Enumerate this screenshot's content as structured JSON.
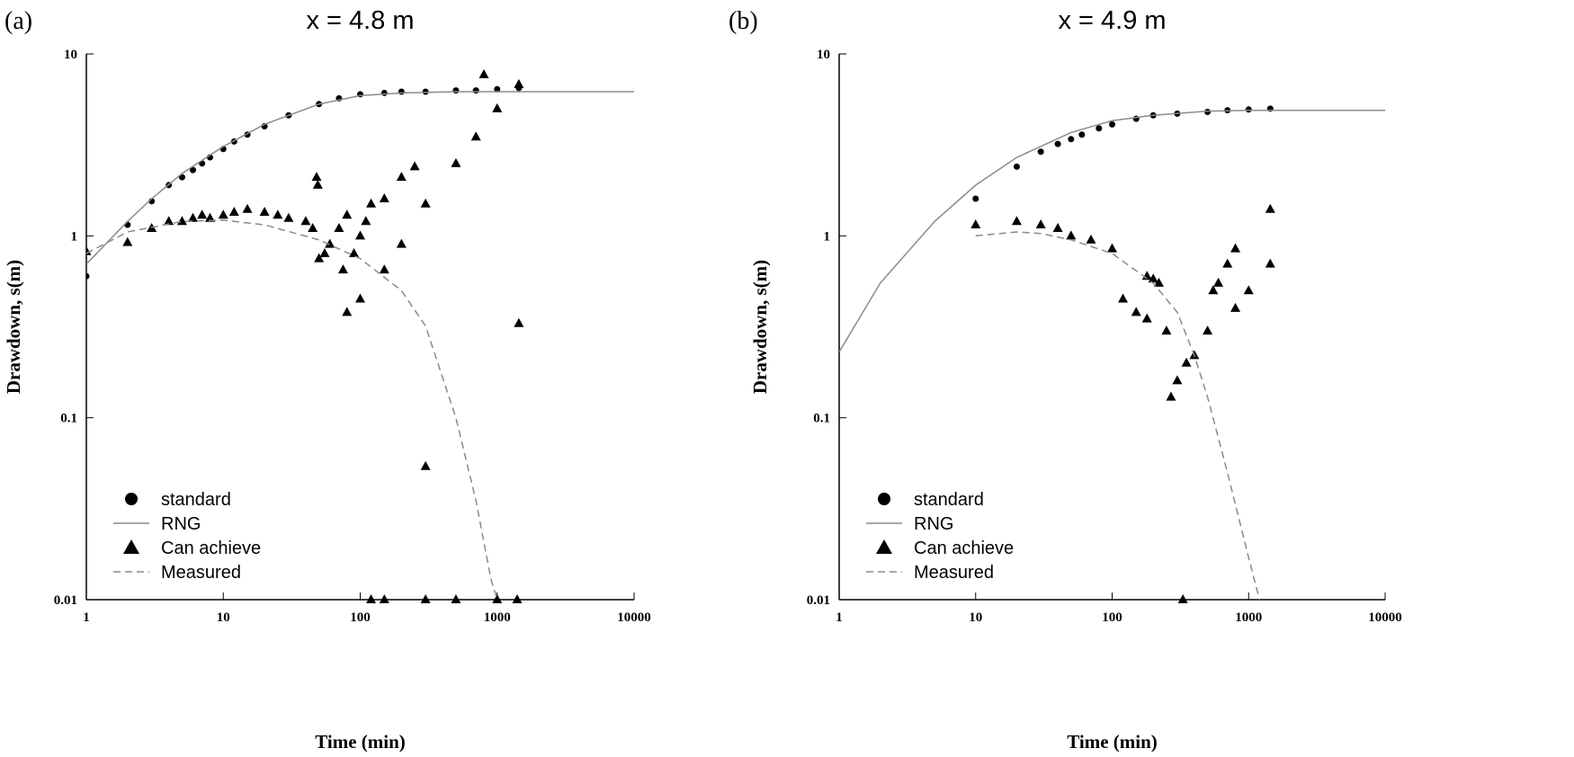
{
  "chart_data": [
    {
      "type": "scatter",
      "label": "(a)",
      "title": "x = 4.8 m",
      "xlabel": "Time (min)",
      "ylabel": "Drawdown, s(m)",
      "xscale": "log",
      "yscale": "log",
      "xlim": [
        1,
        10000
      ],
      "ylim": [
        0.01,
        10
      ],
      "xticks": [
        1,
        10,
        100,
        1000,
        10000
      ],
      "yticks": [
        0.01,
        0.1,
        1,
        10
      ],
      "legend": "lower left",
      "series": [
        {
          "name": "standard",
          "kind": "scatter",
          "marker": "circle",
          "color": "#000000",
          "x": [
            1,
            2,
            3,
            4,
            5,
            6,
            7,
            8,
            10,
            12,
            15,
            20,
            30,
            50,
            70,
            100,
            150,
            200,
            300,
            500,
            700,
            1000,
            1440
          ],
          "values": [
            0.6,
            1.15,
            1.55,
            1.9,
            2.1,
            2.3,
            2.5,
            2.7,
            3.0,
            3.3,
            3.6,
            4.0,
            4.6,
            5.3,
            5.7,
            6.0,
            6.1,
            6.2,
            6.2,
            6.3,
            6.3,
            6.4,
            6.5
          ]
        },
        {
          "name": "RNG",
          "kind": "line",
          "dash": "solid",
          "color": "#8a8a8a",
          "x": [
            1,
            2,
            3,
            5,
            10,
            20,
            50,
            100,
            200,
            500,
            1000,
            10000
          ],
          "values": [
            0.7,
            1.2,
            1.6,
            2.2,
            3.1,
            4.1,
            5.3,
            5.9,
            6.1,
            6.2,
            6.2,
            6.2
          ]
        },
        {
          "name": "Can achieve",
          "kind": "scatter",
          "marker": "triangle",
          "color": "#000000",
          "x": [
            1,
            2,
            3,
            4,
            5,
            6,
            7,
            8,
            10,
            12,
            15,
            20,
            25,
            30,
            40,
            45,
            48,
            49,
            50,
            55,
            60,
            70,
            75,
            80,
            90,
            100,
            110,
            120,
            150,
            200,
            250,
            80,
            100,
            150,
            200,
            300,
            500,
            700,
            1000,
            1440,
            800,
            1440,
            300,
            120,
            150,
            300,
            500,
            1000,
            1400
          ],
          "values": [
            0.82,
            0.92,
            1.1,
            1.2,
            1.2,
            1.25,
            1.3,
            1.25,
            1.3,
            1.35,
            1.4,
            1.35,
            1.3,
            1.25,
            1.2,
            1.1,
            2.1,
            1.9,
            0.75,
            0.8,
            0.9,
            1.1,
            0.65,
            1.3,
            0.8,
            1.0,
            1.2,
            1.5,
            1.6,
            2.1,
            2.4,
            0.38,
            0.45,
            0.65,
            0.9,
            1.5,
            2.5,
            3.5,
            5.0,
            6.8,
            7.7,
            0.33,
            0.054,
            0.01,
            0.01,
            0.01,
            0.01,
            0.01,
            0.01
          ]
        },
        {
          "name": "Measured",
          "kind": "line",
          "dash": "dashed",
          "color": "#8a8a8a",
          "x": [
            1,
            2,
            5,
            10,
            20,
            50,
            100,
            200,
            300,
            500,
            700,
            900,
            1000
          ],
          "values": [
            0.8,
            1.05,
            1.2,
            1.22,
            1.15,
            0.95,
            0.75,
            0.5,
            0.32,
            0.1,
            0.035,
            0.013,
            0.01
          ]
        }
      ]
    },
    {
      "type": "scatter",
      "label": "(b)",
      "title": "x = 4.9 m",
      "xlabel": "Time (min)",
      "ylabel": "Drawdown, s(m)",
      "xscale": "log",
      "yscale": "log",
      "xlim": [
        1,
        10000
      ],
      "ylim": [
        0.01,
        10
      ],
      "xticks": [
        1,
        10,
        100,
        1000,
        10000
      ],
      "yticks": [
        0.01,
        0.1,
        1,
        10
      ],
      "legend": "lower left",
      "series": [
        {
          "name": "standard",
          "kind": "scatter",
          "marker": "circle",
          "color": "#000000",
          "x": [
            10,
            20,
            30,
            40,
            50,
            60,
            80,
            100,
            150,
            200,
            300,
            500,
            700,
            1000,
            1440
          ],
          "values": [
            1.6,
            2.4,
            2.9,
            3.2,
            3.4,
            3.6,
            3.9,
            4.1,
            4.4,
            4.6,
            4.7,
            4.8,
            4.9,
            4.95,
            5.0
          ]
        },
        {
          "name": "RNG",
          "kind": "line",
          "dash": "solid",
          "color": "#8a8a8a",
          "x": [
            1,
            2,
            5,
            10,
            20,
            50,
            100,
            200,
            500,
            1000,
            10000
          ],
          "values": [
            0.23,
            0.55,
            1.2,
            1.9,
            2.7,
            3.7,
            4.3,
            4.6,
            4.85,
            4.9,
            4.9
          ]
        },
        {
          "name": "Can achieve",
          "kind": "scatter",
          "marker": "triangle",
          "color": "#000000",
          "x": [
            10,
            20,
            30,
            40,
            50,
            70,
            100,
            120,
            150,
            180,
            180,
            200,
            220,
            250,
            270,
            300,
            350,
            400,
            500,
            550,
            600,
            700,
            800,
            800,
            1000,
            1440,
            1440,
            330
          ],
          "values": [
            1.15,
            1.2,
            1.15,
            1.1,
            1.0,
            0.95,
            0.85,
            0.45,
            0.38,
            0.6,
            0.35,
            0.58,
            0.55,
            0.3,
            0.13,
            0.16,
            0.2,
            0.22,
            0.3,
            0.5,
            0.55,
            0.7,
            0.85,
            0.4,
            0.5,
            1.4,
            0.7,
            0.01
          ]
        },
        {
          "name": "Measured",
          "kind": "line",
          "dash": "dashed",
          "color": "#8a8a8a",
          "x": [
            10,
            20,
            30,
            50,
            100,
            200,
            300,
            400,
            500,
            700,
            1000,
            1200
          ],
          "values": [
            1.0,
            1.05,
            1.03,
            0.95,
            0.8,
            0.55,
            0.38,
            0.22,
            0.13,
            0.05,
            0.017,
            0.01
          ]
        }
      ]
    }
  ]
}
